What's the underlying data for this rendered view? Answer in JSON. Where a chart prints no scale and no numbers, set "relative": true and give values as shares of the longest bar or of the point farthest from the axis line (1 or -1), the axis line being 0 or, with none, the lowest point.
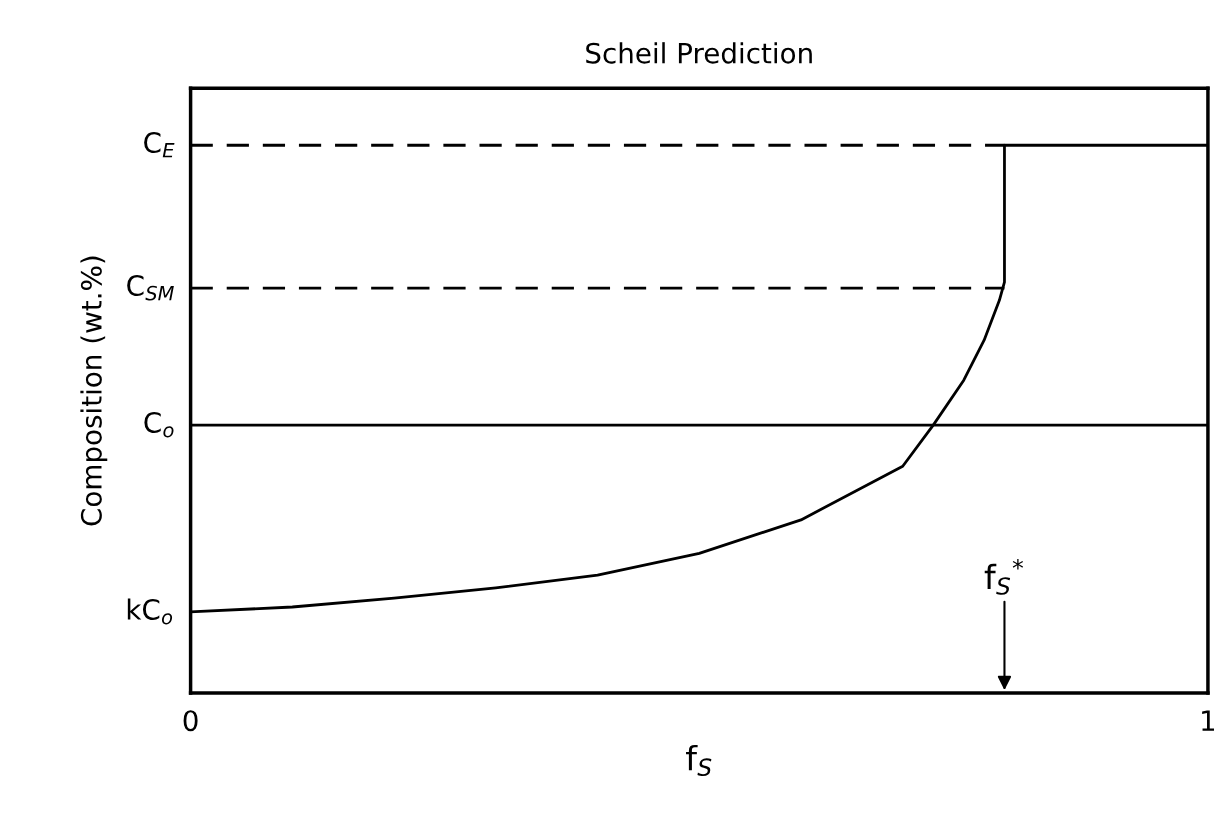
{
  "chart_data": {
    "type": "line",
    "title": "Scheil Prediction",
    "xlabel": "f$_{S}$",
    "ylabel": "Composition (wt.%)",
    "relative": true,
    "xlim": [
      0,
      1
    ],
    "xticks": [
      0,
      1
    ],
    "legend": false,
    "marker": "none",
    "series": [
      {
        "color": "#000000",
        "line_style": "solid",
        "x": [
          0,
          0.1,
          0.2,
          0.3,
          0.4,
          0.5,
          0.6,
          0.7,
          0.73,
          0.76,
          0.78,
          0.795,
          0.8,
          0.8,
          1.0
        ],
        "values": [
          0.148,
          0.157,
          0.173,
          0.192,
          0.215,
          0.255,
          0.316,
          0.414,
          0.489,
          0.571,
          0.644,
          0.717,
          0.75,
          1.0,
          1.0
        ]
      },
      {
        "name": "C$_{E}$",
        "color": "#000000",
        "line_style": "dashed",
        "x": [
          0,
          0.8
        ],
        "values": [
          1.0,
          1.0
        ]
      },
      {
        "name": "C$_{SM}$",
        "color": "#000000",
        "line_style": "dashed",
        "x": [
          0,
          0.8
        ],
        "values": [
          0.739,
          0.739
        ]
      },
      {
        "name": "C$_{o}$",
        "color": "#000000",
        "line_style": "solid",
        "x": [
          0,
          1
        ],
        "values": [
          0.489,
          0.489
        ]
      }
    ],
    "annotations": [
      {
        "text": "kC$_{o}$",
        "x": 0,
        "y": 0.148
      },
      "f$_{S}$$^{*}$"
    ]
  }
}
